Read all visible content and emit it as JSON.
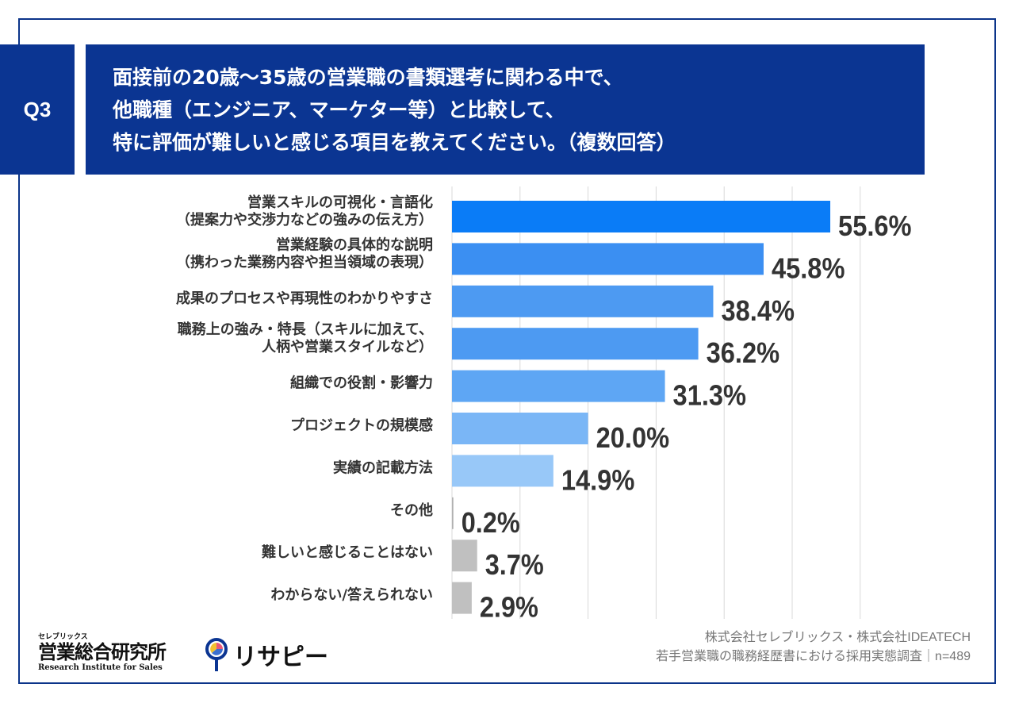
{
  "header": {
    "badge": "Q3",
    "title_lines": [
      "面接前の20歳～35歳の営業職の書類選考に関わる中で、",
      "他職種（エンジニア、マーケター等）と比較して、",
      "特に評価が難しいと感じる項目を教えてください。（複数回答）"
    ]
  },
  "chart_data": {
    "type": "bar",
    "orientation": "horizontal",
    "title": "面接前の20歳～35歳の営業職の書類選考に関わる中で、他職種（エンジニア、マーケター等）と比較して、特に評価が難しいと感じる項目を教えてください。（複数回答）",
    "categories": [
      [
        "営業スキルの可視化・言語化",
        "（提案力や交渉力などの強みの伝え方）"
      ],
      [
        "営業経験の具体的な説明",
        "（携わった業務内容や担当領域の表現）"
      ],
      [
        "成果のプロセスや再現性のわかりやすさ"
      ],
      [
        "職務上の強み・特長（スキルに加えて、",
        "人柄や営業スタイルなど）"
      ],
      [
        "組織での役割・影響力"
      ],
      [
        "プロジェクトの規模感"
      ],
      [
        "実績の記載方法"
      ],
      [
        "その他"
      ],
      [
        "難しいと感じることはない"
      ],
      [
        "わからない/答えられない"
      ]
    ],
    "values": [
      55.6,
      45.8,
      38.4,
      36.2,
      31.3,
      20.0,
      14.9,
      0.2,
      3.7,
      2.9
    ],
    "value_labels": [
      "55.6%",
      "45.8%",
      "38.4%",
      "36.2%",
      "31.3%",
      "20.0%",
      "14.9%",
      "0.2%",
      "3.7%",
      "2.9%"
    ],
    "colors": [
      "#0a7cf7",
      "#3b8ff2",
      "#4d9af2",
      "#4d9af2",
      "#5ea6f4",
      "#7ab6f6",
      "#98c8f8",
      "#b0b0b0",
      "#c0c0c0",
      "#c0c0c0"
    ],
    "xlim": [
      0,
      60
    ],
    "grid": true,
    "xlabel": "",
    "ylabel": ""
  },
  "footer": {
    "logo1_small": "セレブリックス",
    "logo1_main": "営業総合研究所",
    "logo1_en": "Research Institute for Sales",
    "logo2": "リサピー",
    "source_lines": [
      "株式会社セレブリックス・株式会社IDEATECH",
      "若手営業職の職務経歴書における採用実態調査｜n=489"
    ]
  }
}
